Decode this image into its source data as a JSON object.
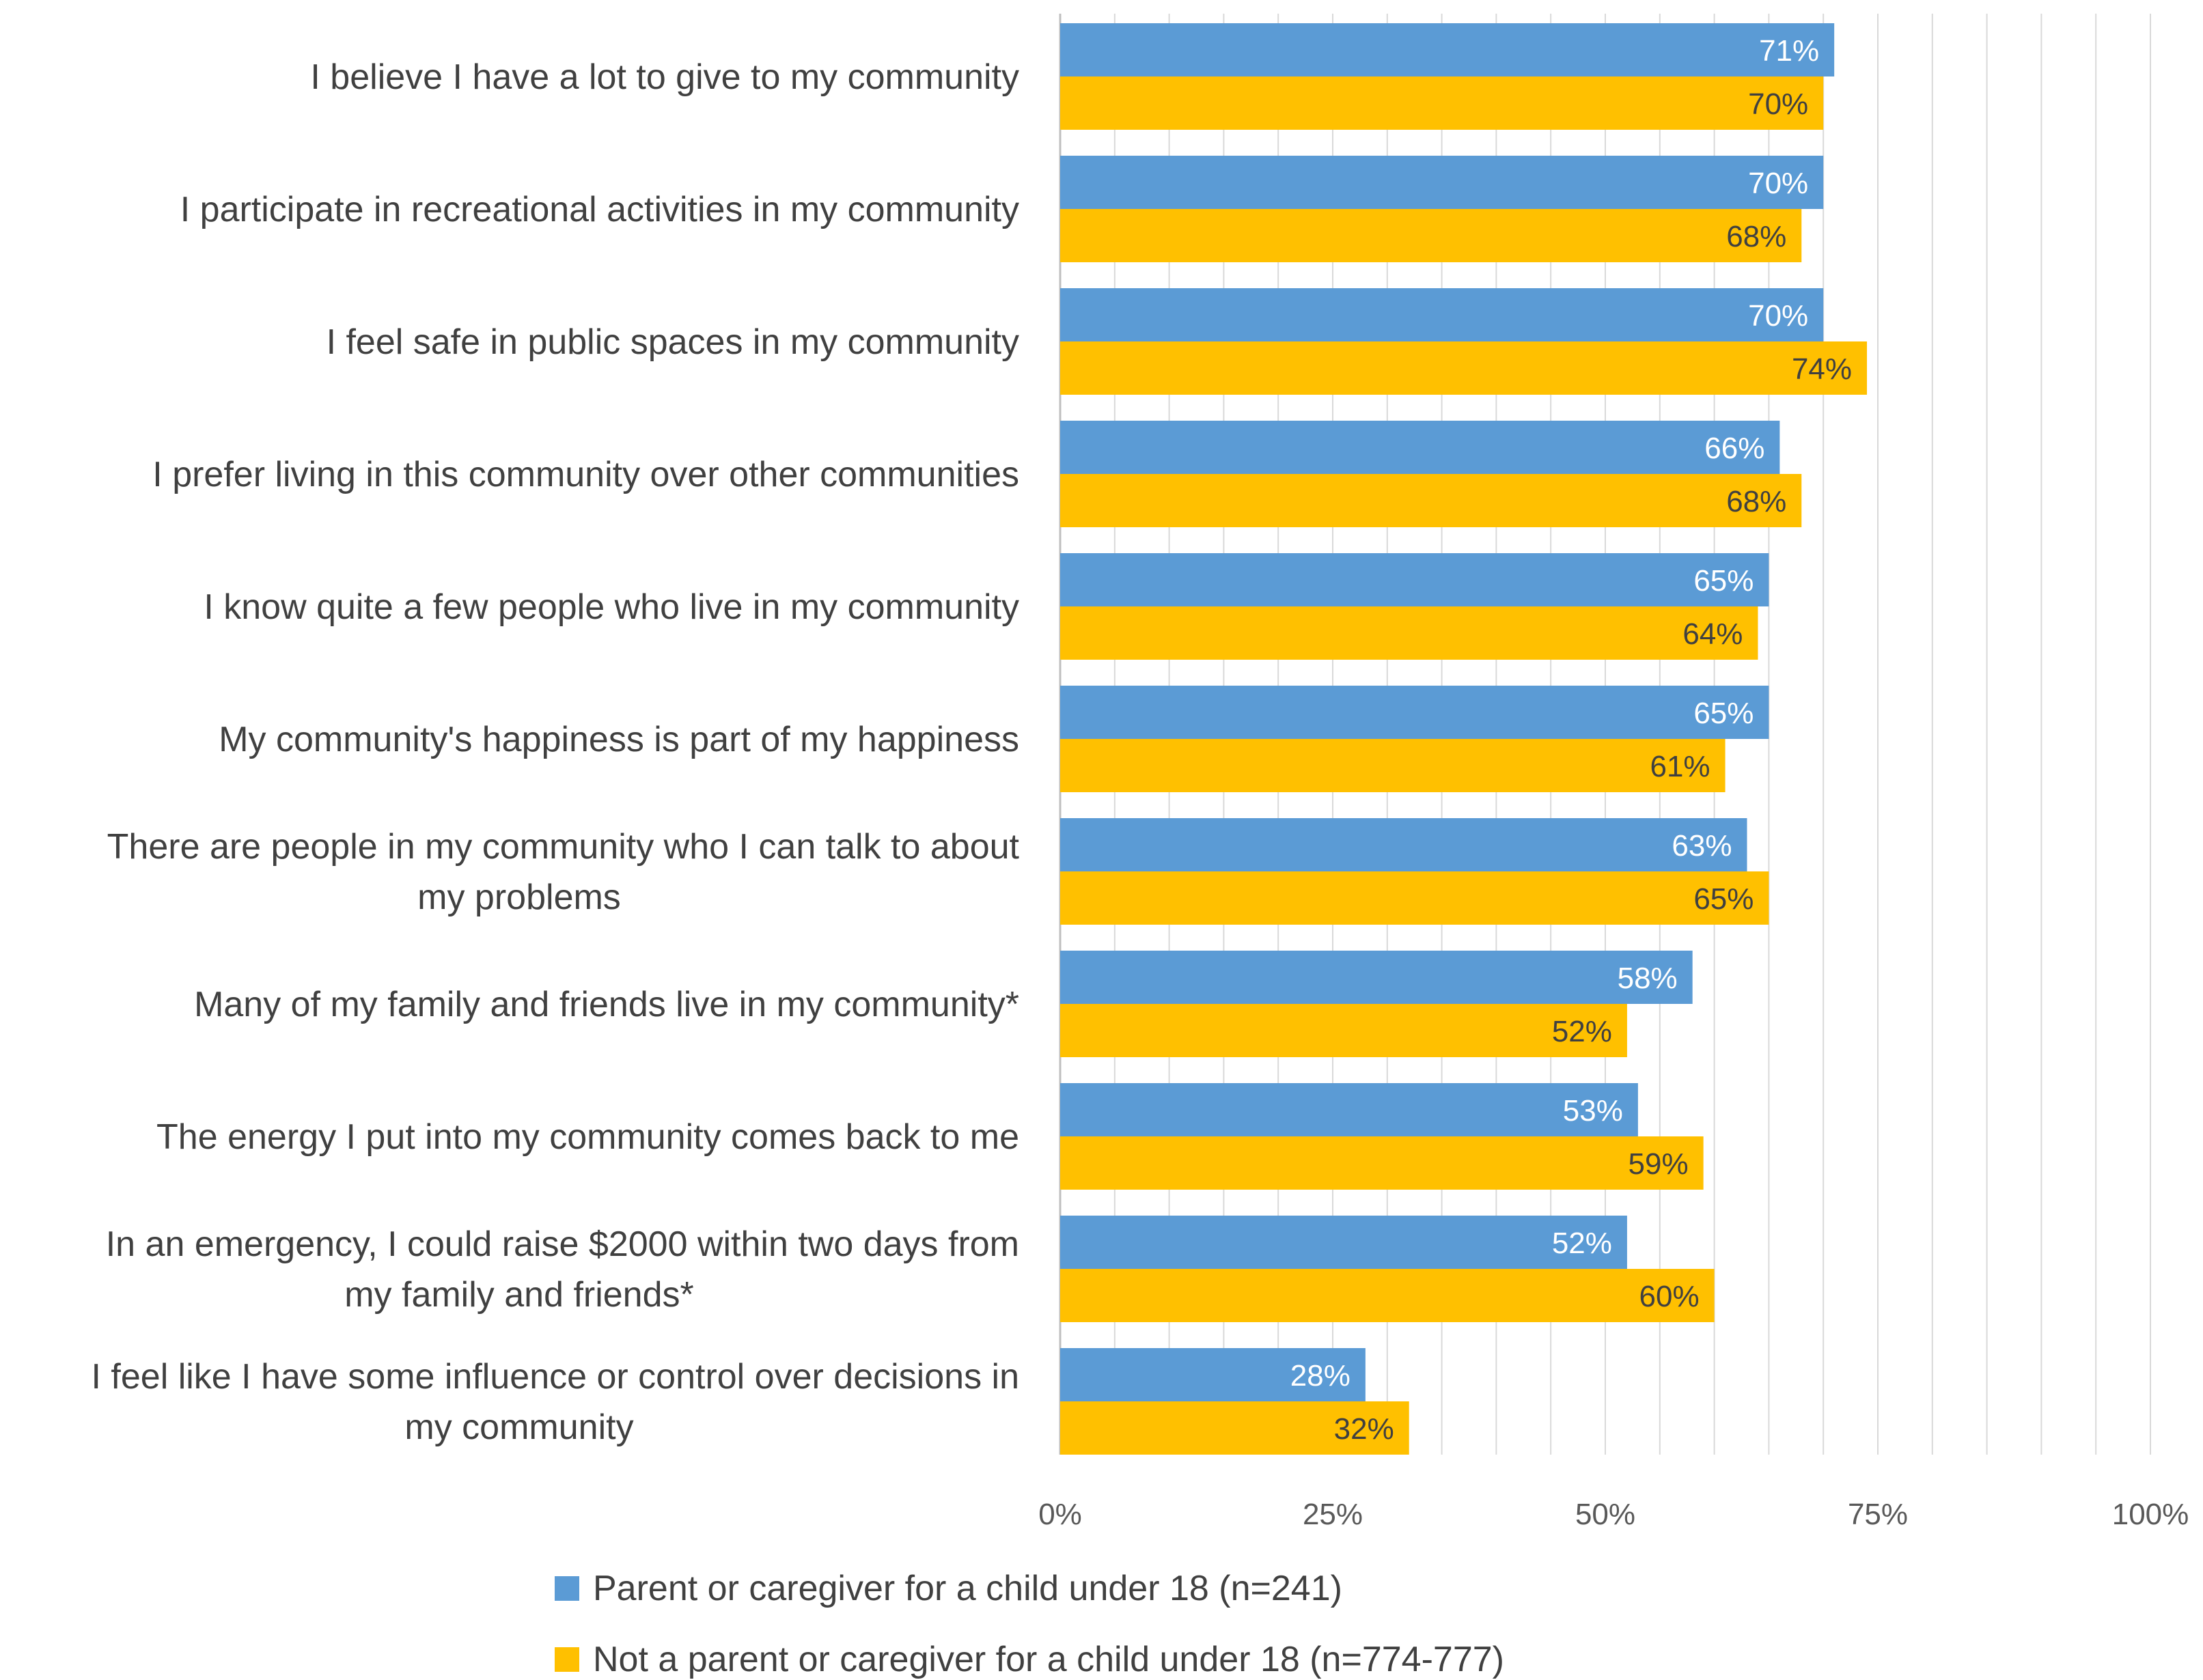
{
  "chart_data": {
    "type": "bar",
    "orientation": "horizontal",
    "categories": [
      [
        "I believe I have a lot to give to my community"
      ],
      [
        "I participate in recreational activities in my community"
      ],
      [
        "I feel safe in public spaces in my community"
      ],
      [
        "I prefer living in this community over other communities"
      ],
      [
        "I know quite a few people who live in my community"
      ],
      [
        "My community's happiness is part of my happiness"
      ],
      [
        "There are people in my community who I can talk to about",
        "my problems"
      ],
      [
        "Many of my family and friends live in my community*"
      ],
      [
        "The energy I put into my community comes back to me"
      ],
      [
        "In an emergency, I could raise $2000 within two days from",
        "my family and friends*"
      ],
      [
        "I feel like I have some influence or control over decisions in",
        "my community"
      ]
    ],
    "series": [
      {
        "name": "Parent or caregiver for a child under 18 (n=241)",
        "color": "#5B9BD5",
        "values": [
          71,
          70,
          70,
          66,
          65,
          65,
          63,
          58,
          53,
          52,
          28
        ],
        "labels": [
          "71%",
          "70%",
          "70%",
          "66%",
          "65%",
          "65%",
          "63%",
          "58%",
          "53%",
          "52%",
          "28%"
        ]
      },
      {
        "name": "Not a parent or caregiver for a child under 18 (n=774-777)",
        "color": "#FFC000",
        "values": [
          70,
          68,
          74,
          68,
          64,
          61,
          65,
          52,
          59,
          60,
          32
        ],
        "labels": [
          "70%",
          "68%",
          "74%",
          "68%",
          "64%",
          "61%",
          "65%",
          "52%",
          "59%",
          "60%",
          "32%"
        ]
      }
    ],
    "xlim": [
      0,
      100
    ],
    "xticks": [
      0,
      25,
      50,
      75,
      100
    ],
    "xtick_labels": [
      "0%",
      "25%",
      "50%",
      "75%",
      "100%"
    ],
    "gridlines": true,
    "legend_position": "bottom"
  }
}
